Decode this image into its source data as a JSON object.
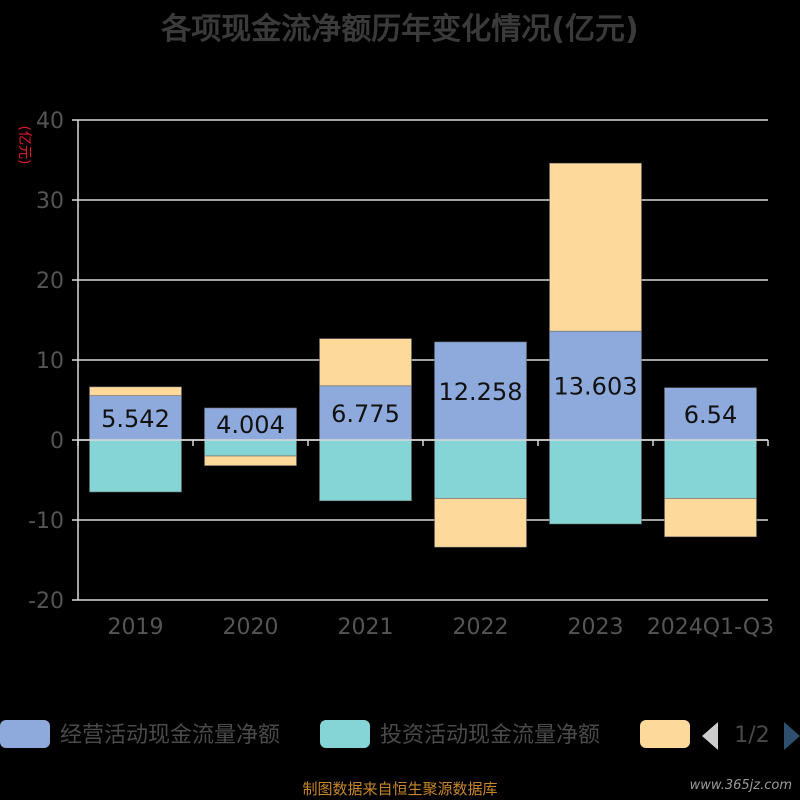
{
  "chart_data": {
    "type": "bar",
    "stacked": true,
    "title": "各项现金流净额历年变化情况(亿元)",
    "ylabel": "(亿元)",
    "ylim": [
      -20,
      40
    ],
    "yticks": [
      -20,
      -10,
      0,
      10,
      20,
      30,
      40
    ],
    "categories": [
      "2019",
      "2020",
      "2021",
      "2022",
      "2023",
      "2024Q1-Q3"
    ],
    "series": [
      {
        "name": "经营活动现金流量净额",
        "color": "#8eaadc",
        "values": [
          5.542,
          4.004,
          6.775,
          12.258,
          13.603,
          6.54
        ]
      },
      {
        "name": "投资活动现金流量净额",
        "color": "#85d5d6",
        "values": [
          -6.5,
          -2.0,
          -7.6,
          -7.3,
          -10.5,
          -7.3
        ]
      },
      {
        "name": "",
        "color": "#fdd99b",
        "values": [
          1.1,
          -1.2,
          5.9,
          -6.1,
          21.0,
          -4.8
        ]
      }
    ],
    "data_labels": [
      "5.542",
      "4.004",
      "6.775",
      "12.258",
      "13.603",
      "6.54"
    ],
    "grid": true,
    "legend": {
      "position": "bottom",
      "page": "1/2"
    }
  },
  "footer": "制图数据来自恒生聚源数据库",
  "watermark": "www.365jz.com"
}
